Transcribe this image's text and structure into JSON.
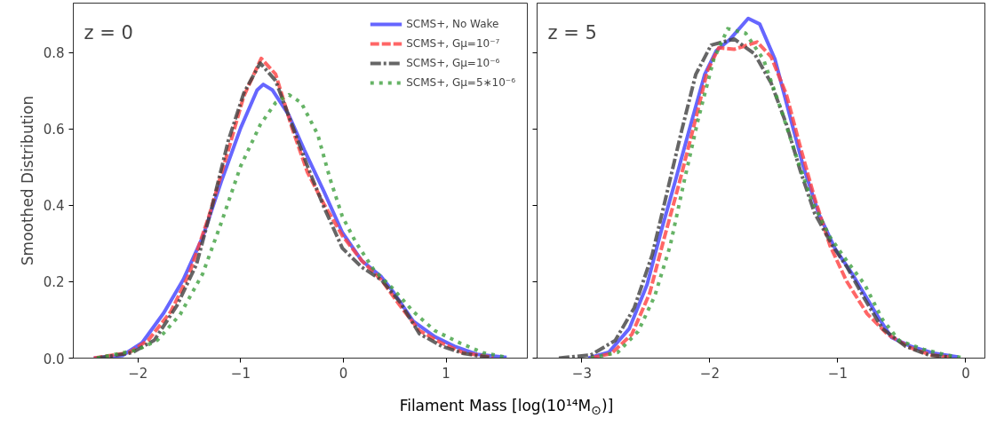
{
  "chart_data": [
    {
      "type": "line",
      "annotations": [
        "z = 0"
      ],
      "ylabel": "Smoothed Distribution",
      "xlabel": "Filament Mass [log(10¹⁴M$_{⊙}$)]",
      "legend": "top right",
      "grid": false,
      "xlim": [
        -2.63,
        1.8
      ],
      "ylim": [
        0,
        0.93
      ],
      "xticks": [
        {
          "value": -2,
          "label": "−2"
        },
        {
          "value": -1,
          "label": "−1"
        },
        0,
        1
      ],
      "yticks": [
        {
          "value": 0,
          "label": "0.0"
        },
        0.2,
        0.4,
        0.6,
        0.8
      ],
      "series": [
        {
          "name": "SCMS+, No Wake",
          "color": "#4040ff",
          "line_style": "solid",
          "x": [
            -2.43,
            -2.15,
            -1.96,
            -1.75,
            -1.56,
            -1.37,
            -1.19,
            -1.0,
            -0.84,
            -0.78,
            -0.69,
            -0.53,
            -0.38,
            -0.19,
            -0.01,
            0.18,
            0.37,
            0.49,
            0.68,
            0.89,
            1.08,
            1.3,
            1.59
          ],
          "values": [
            0,
            0.007,
            0.04,
            0.118,
            0.205,
            0.317,
            0.462,
            0.603,
            0.702,
            0.717,
            0.702,
            0.636,
            0.545,
            0.437,
            0.329,
            0.255,
            0.213,
            0.172,
            0.097,
            0.056,
            0.031,
            0.01,
            0.002
          ]
        },
        {
          "name": "SCMS+, Gμ=10⁻⁷",
          "color": "#ff4040",
          "line_style": "dashed",
          "x": [
            -2.43,
            -2.09,
            -1.9,
            -1.68,
            -1.5,
            -1.31,
            -1.12,
            -0.97,
            -0.8,
            -0.66,
            -0.5,
            -0.35,
            -0.19,
            -0.01,
            0.18,
            0.37,
            0.55,
            0.74,
            0.96,
            1.17,
            1.46
          ],
          "values": [
            0,
            0.014,
            0.047,
            0.122,
            0.221,
            0.371,
            0.545,
            0.686,
            0.785,
            0.744,
            0.603,
            0.487,
            0.404,
            0.321,
            0.255,
            0.205,
            0.138,
            0.072,
            0.039,
            0.014,
            0.002
          ]
        },
        {
          "name": "SCMS+, Gμ=10⁻⁶",
          "color": "#404040",
          "line_style": "dashdot",
          "x": [
            -2.4,
            -2.06,
            -1.84,
            -1.62,
            -1.43,
            -1.28,
            -1.12,
            -0.97,
            -0.81,
            -0.66,
            -0.5,
            -0.35,
            -0.19,
            -0.01,
            0.18,
            0.37,
            0.55,
            0.74,
            0.96,
            1.17,
            1.42
          ],
          "values": [
            0,
            0.014,
            0.047,
            0.138,
            0.246,
            0.396,
            0.57,
            0.694,
            0.773,
            0.727,
            0.611,
            0.503,
            0.396,
            0.288,
            0.238,
            0.205,
            0.147,
            0.064,
            0.031,
            0.012,
            0.002
          ]
        },
        {
          "name": "SCMS+, Gμ=5∗10⁻⁶",
          "color": "#40a040",
          "line_style": "dotted",
          "x": [
            -2.4,
            -2.0,
            -1.81,
            -1.59,
            -1.37,
            -1.19,
            -1.0,
            -0.81,
            -0.66,
            -0.53,
            -0.41,
            -0.25,
            -0.13,
            -0.01,
            0.12,
            0.3,
            0.49,
            0.68,
            0.89,
            1.14,
            1.36,
            1.59
          ],
          "values": [
            0,
            0.022,
            0.047,
            0.114,
            0.221,
            0.354,
            0.503,
            0.611,
            0.669,
            0.69,
            0.669,
            0.586,
            0.47,
            0.371,
            0.304,
            0.23,
            0.18,
            0.122,
            0.072,
            0.039,
            0.014,
            0.002
          ]
        }
      ]
    },
    {
      "type": "line",
      "annotations": [
        "z = 5"
      ],
      "grid": false,
      "tick_labels": "x",
      "xlim": [
        -3.35,
        0.15
      ],
      "ylim": [
        0,
        0.93
      ],
      "xticks": [
        {
          "value": -3,
          "label": "−3"
        },
        {
          "value": -2,
          "label": "−2"
        },
        {
          "value": -1,
          "label": "−1"
        },
        0
      ],
      "yticks": [
        {
          "value": 0,
          "label": null
        },
        {
          "value": 0.2,
          "label": null
        },
        {
          "value": 0.4,
          "label": null
        },
        {
          "value": 0.6,
          "label": null
        },
        {
          "value": 0.8,
          "label": null
        }
      ],
      "series": [
        {
          "color": "#4040ff",
          "line_style": "solid",
          "x": [
            -2.95,
            -2.79,
            -2.63,
            -2.49,
            -2.38,
            -2.27,
            -2.15,
            -2.04,
            -1.95,
            -1.84,
            -1.7,
            -1.61,
            -1.49,
            -1.38,
            -1.27,
            -1.15,
            -1.02,
            -0.88,
            -0.7,
            -0.58,
            -0.43,
            -0.24,
            -0.06
          ],
          "values": [
            0,
            0.015,
            0.077,
            0.193,
            0.333,
            0.464,
            0.611,
            0.743,
            0.805,
            0.836,
            0.89,
            0.875,
            0.782,
            0.642,
            0.503,
            0.379,
            0.286,
            0.217,
            0.116,
            0.054,
            0.031,
            0.012,
            0.003
          ]
        },
        {
          "color": "#ff4040",
          "line_style": "dashed",
          "x": [
            -2.93,
            -2.77,
            -2.61,
            -2.47,
            -2.36,
            -2.24,
            -2.11,
            -2.02,
            -1.93,
            -1.81,
            -1.63,
            -1.52,
            -1.4,
            -1.29,
            -1.18,
            -1.06,
            -0.93,
            -0.77,
            -0.61,
            -0.43,
            -0.27,
            -0.11
          ],
          "values": [
            0,
            0.012,
            0.062,
            0.17,
            0.31,
            0.457,
            0.627,
            0.751,
            0.813,
            0.809,
            0.828,
            0.789,
            0.689,
            0.55,
            0.418,
            0.294,
            0.201,
            0.116,
            0.062,
            0.027,
            0.008,
            0.002
          ]
        },
        {
          "color": "#404040",
          "line_style": "dashdot",
          "x": [
            -3.18,
            -2.93,
            -2.74,
            -2.59,
            -2.45,
            -2.34,
            -2.22,
            -2.11,
            -1.99,
            -1.81,
            -1.65,
            -1.52,
            -1.4,
            -1.29,
            -1.18,
            -1.04,
            -0.93,
            -0.79,
            -0.65,
            -0.47,
            -0.29,
            -0.11
          ],
          "values": [
            0,
            0.008,
            0.046,
            0.132,
            0.271,
            0.426,
            0.596,
            0.743,
            0.82,
            0.836,
            0.797,
            0.72,
            0.611,
            0.488,
            0.379,
            0.294,
            0.24,
            0.155,
            0.077,
            0.031,
            0.008,
            0.002
          ]
        },
        {
          "color": "#40a040",
          "line_style": "dotted",
          "x": [
            -2.93,
            -2.72,
            -2.56,
            -2.43,
            -2.31,
            -2.2,
            -2.09,
            -1.97,
            -1.86,
            -1.72,
            -1.58,
            -1.45,
            -1.33,
            -1.2,
            -1.06,
            -0.93,
            -0.79,
            -0.65,
            -0.52,
            -0.33,
            -0.15,
            -0.04
          ],
          "values": [
            0,
            0.015,
            0.07,
            0.163,
            0.294,
            0.464,
            0.627,
            0.782,
            0.863,
            0.851,
            0.782,
            0.658,
            0.534,
            0.41,
            0.317,
            0.255,
            0.193,
            0.101,
            0.046,
            0.023,
            0.008,
            0.002
          ]
        }
      ]
    }
  ]
}
